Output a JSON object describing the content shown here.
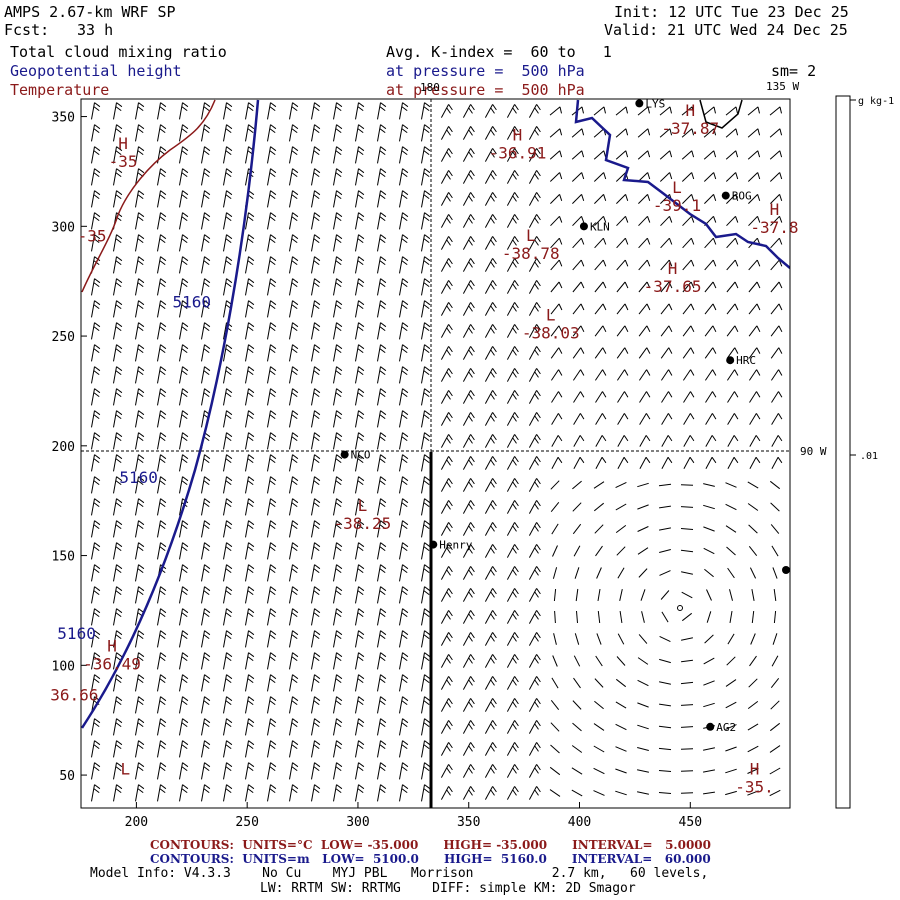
{
  "header": {
    "model": "AMPS 2.67-km WRF SP",
    "forecast_label": "Fcst:",
    "forecast_hours": "33 h",
    "init": "Init: 12 UTC Tue 23 Dec 25",
    "valid": "Valid: 21 UTC Wed 24 Dec 25",
    "field1": "Total cloud mixing ratio",
    "field2": "Geopotential height",
    "field3": "Temperature",
    "avg": "Avg. K-index =  60 to   1",
    "pressure1": "at pressure =  500 hPa",
    "pressure2": "at pressure =  500 hPa",
    "sm": "sm= 2"
  },
  "colors": {
    "height": "#1a1a8c",
    "temperature": "#8b1a1a",
    "barb": "#000000"
  },
  "map": {
    "x_ticks": [
      "200",
      "250",
      "300",
      "350",
      "400",
      "450"
    ],
    "y_ticks": [
      "350",
      "300",
      "250",
      "200",
      "150",
      "100",
      "50"
    ],
    "x_range": [
      175,
      495
    ],
    "y_range": [
      35,
      358
    ],
    "lon_labels": {
      "top": "180",
      "top_right": "135 W",
      "right": "90 W"
    },
    "stations": [
      {
        "name": "KLN",
        "x": 402,
        "y": 300
      },
      {
        "name": "BOG",
        "x": 466,
        "y": 314
      },
      {
        "name": "HRC",
        "x": 468,
        "y": 239
      },
      {
        "name": "NCO",
        "x": 294,
        "y": 196
      },
      {
        "name": "Henry",
        "x": 334,
        "y": 155
      },
      {
        "name": "AG2",
        "x": 459,
        "y": 72
      },
      {
        "name": "LYS",
        "x": 427,
        "y": 356
      }
    ],
    "height_labels": [
      {
        "text": "5160",
        "x": 225,
        "y": 263
      },
      {
        "text": "5160",
        "x": 201,
        "y": 183
      },
      {
        "text": "5160",
        "x": 173,
        "y": 112
      }
    ],
    "temp_extrema": [
      {
        "kind": "H",
        "value": "-35",
        "x": 194,
        "y": 327
      },
      {
        "kind": "",
        "value": "-35",
        "x": 180,
        "y": 293
      },
      {
        "kind": "H",
        "value": "-36.91",
        "x": 372,
        "y": 331
      },
      {
        "kind": "H",
        "value": "-37.87",
        "x": 450,
        "y": 342
      },
      {
        "kind": "L",
        "value": "-39.1",
        "x": 444,
        "y": 307
      },
      {
        "kind": "H",
        "value": "-37.8",
        "x": 488,
        "y": 297
      },
      {
        "kind": "L",
        "value": "-38.78",
        "x": 378,
        "y": 285
      },
      {
        "kind": "H",
        "value": "-37.65",
        "x": 442,
        "y": 270
      },
      {
        "kind": "L",
        "value": "-38.03",
        "x": 387,
        "y": 249
      },
      {
        "kind": "L",
        "value": "-38.25",
        "x": 302,
        "y": 162
      },
      {
        "kind": "H",
        "value": "-36.49",
        "x": 189,
        "y": 98
      },
      {
        "kind": "",
        "value": "36.66",
        "x": 172,
        "y": 84
      },
      {
        "kind": "L",
        "value": "",
        "x": 195,
        "y": 42
      },
      {
        "kind": "H",
        "value": "-35.",
        "x": 479,
        "y": 42
      }
    ]
  },
  "colorbar": {
    "unit": "g kg-1",
    "value_label": ".01"
  },
  "footer": {
    "line1": "CONTOURS:  UNITS=°C  LOW= -35.000      HIGH= -35.000      INTERVAL=   5.0000",
    "line2": "CONTOURS:  UNITS=m   LOW=  5100.0      HIGH=  5160.0      INTERVAL=   60.000",
    "model_info": "Model Info: V4.3.3    No Cu    MYJ PBL   Morrison          2.7 km,   60 levels,",
    "physics": "LW: RRTM SW: RRTMG    DIFF: simple KM: 2D Smagor"
  }
}
